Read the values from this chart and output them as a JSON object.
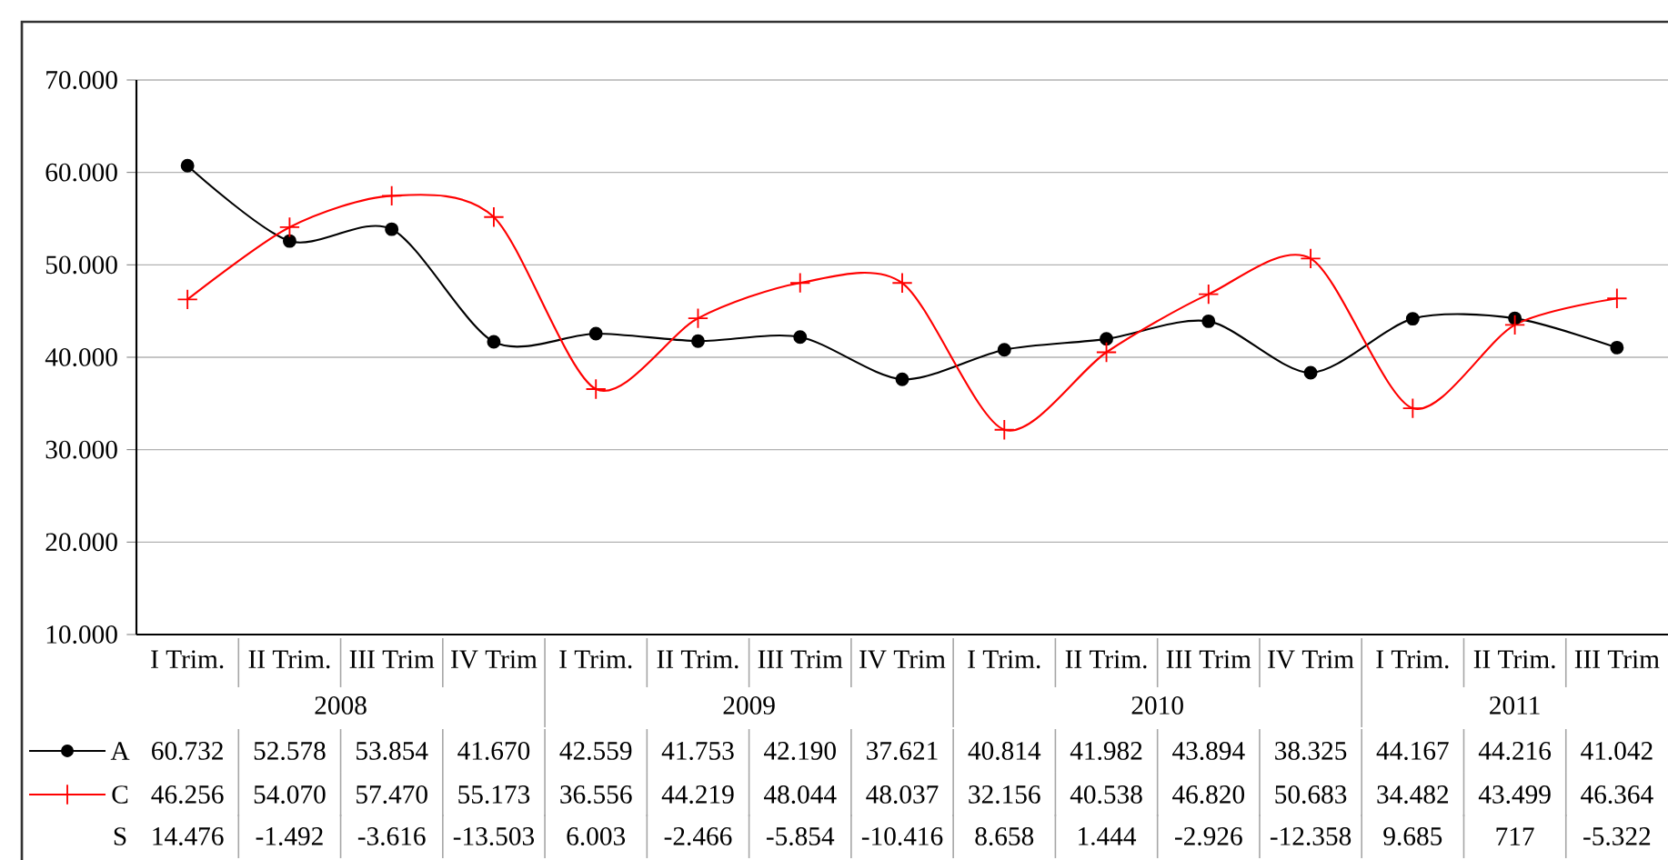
{
  "chart_data": {
    "type": "line",
    "categories": [
      "I Trim.",
      "II Trim.",
      "III Trim",
      "IV Trim",
      "I Trim.",
      "II Trim.",
      "III Trim",
      "IV Trim",
      "I Trim.",
      "II Trim.",
      "III Trim",
      "IV Trim",
      "I Trim.",
      "II Trim.",
      "III Trim"
    ],
    "annotations": [
      "2008",
      "2009",
      "2010",
      "2011"
    ],
    "series": [
      {
        "name": "A",
        "color": "#000000",
        "marker": "circle",
        "values": [
          60732,
          52578,
          53854,
          41670,
          42559,
          41753,
          42190,
          37621,
          40814,
          41982,
          43894,
          38325,
          44167,
          44216,
          41042
        ],
        "value_labels": [
          "60.732",
          "52.578",
          "53.854",
          "41.670",
          "42.559",
          "41.753",
          "42.190",
          "37.621",
          "40.814",
          "41.982",
          "43.894",
          "38.325",
          "44.167",
          "44.216",
          "41.042"
        ]
      },
      {
        "name": "C",
        "color": "#ff0000",
        "marker": "cross",
        "values": [
          46256,
          54070,
          57470,
          55173,
          36556,
          44219,
          48044,
          48037,
          32156,
          40538,
          46820,
          50683,
          34482,
          43499,
          46364
        ],
        "value_labels": [
          "46.256",
          "54.070",
          "57.470",
          "55.173",
          "36.556",
          "44.219",
          "48.044",
          "48.037",
          "32.156",
          "40.538",
          "46.820",
          "50.683",
          "34.482",
          "43.499",
          "46.364"
        ]
      },
      {
        "name": "S",
        "values": [
          null,
          null,
          null,
          null,
          null,
          null,
          null,
          null,
          null,
          null,
          null,
          null,
          null,
          null,
          null
        ],
        "value_labels": [
          "14.476",
          "-1.492",
          "-3.616",
          "-13.503",
          "6.003",
          "-2.466",
          "-5.854",
          "-10.416",
          "8.658",
          "1.444",
          "-2.926",
          "-12.358",
          "9.685",
          "717",
          "-5.322"
        ]
      }
    ],
    "ylim": [
      10000,
      70000
    ],
    "yticks": [
      {
        "value": 10000,
        "label": "10.000"
      },
      {
        "value": 20000,
        "label": "20.000"
      },
      {
        "value": 30000,
        "label": "30.000"
      },
      {
        "value": 40000,
        "label": "40.000"
      },
      {
        "value": 50000,
        "label": "50.000"
      },
      {
        "value": 60000,
        "label": "60.000"
      },
      {
        "value": 70000,
        "label": "70.000"
      }
    ],
    "grid": "y",
    "legend": "bottom",
    "line_style": "solid"
  }
}
